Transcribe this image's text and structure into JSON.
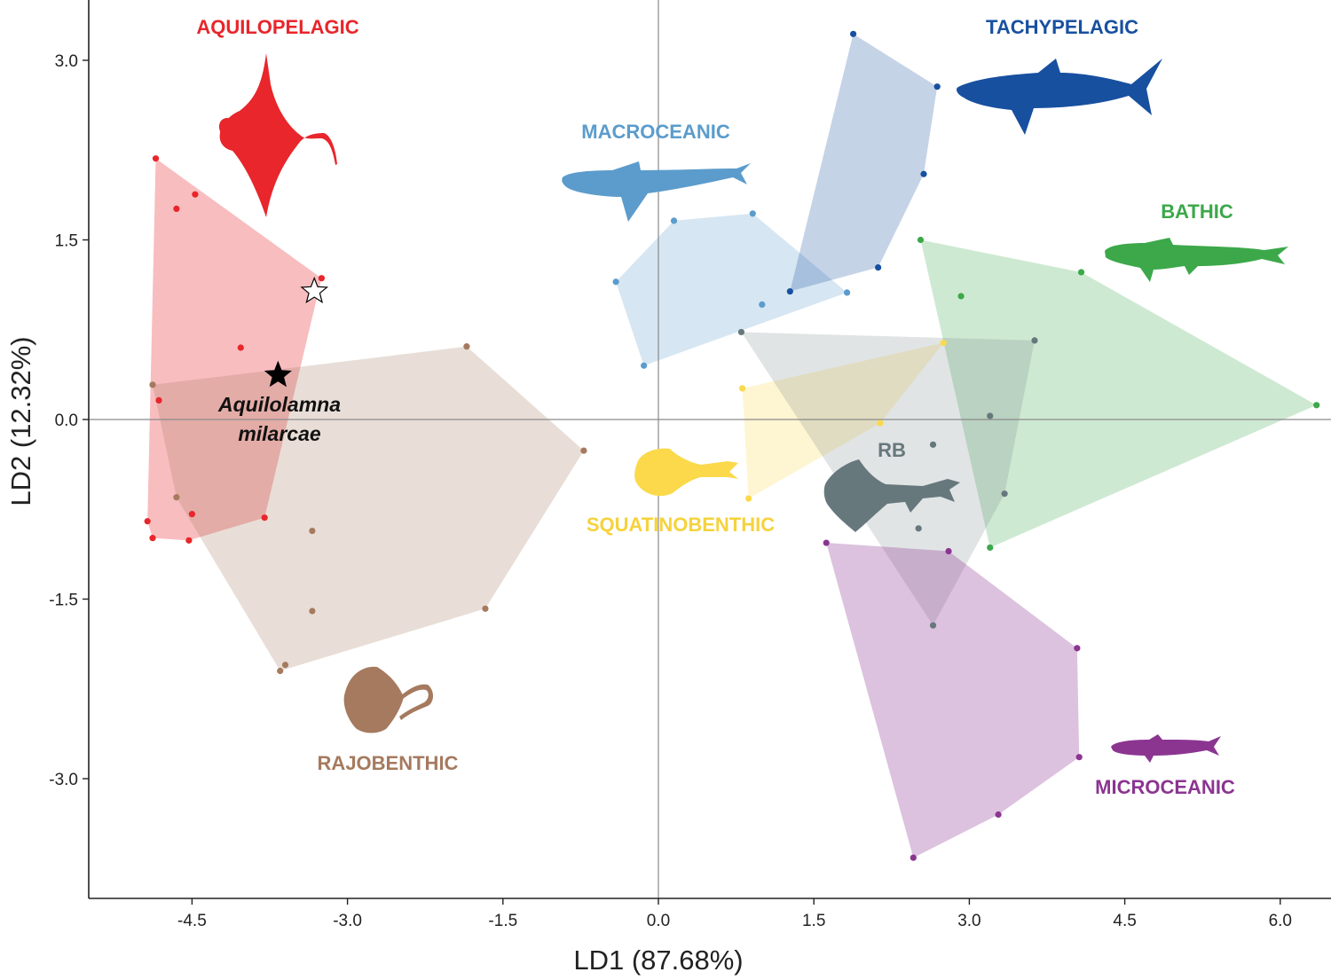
{
  "chart_data": {
    "type": "scatter",
    "xlabel": "LD1 (87.68%)",
    "ylabel": "LD2 (12.32%)",
    "xlim": [
      -5.5,
      6.5
    ],
    "ylim": [
      -4.0,
      3.5
    ],
    "xticks": [
      -4.5,
      -3.0,
      -1.5,
      0.0,
      1.5,
      3.0,
      4.5,
      6.0
    ],
    "xtick_labels": [
      "-4.5",
      "-3.0",
      "-1.5",
      "0.0",
      "1.5",
      "3.0",
      "4.5",
      "6.0"
    ],
    "yticks": [
      -3.0,
      -1.5,
      0.0,
      1.5,
      3.0
    ],
    "ytick_labels": [
      "-3.0",
      "-1.5",
      "0.0",
      "1.5",
      "3.0"
    ],
    "grid": false,
    "reference_lines": {
      "x": 0.0,
      "y": 0.0
    },
    "series": [
      {
        "name": "AQUILOPELAGIC",
        "color": "#e8262b",
        "hull_opacity": 0.3,
        "points": [
          [
            -4.85,
            2.18
          ],
          [
            -4.47,
            1.88
          ],
          [
            -4.65,
            1.76
          ],
          [
            -3.25,
            1.18
          ],
          [
            -4.03,
            0.6
          ],
          [
            -4.82,
            0.16
          ],
          [
            -4.5,
            -0.79
          ],
          [
            -3.8,
            -0.82
          ],
          [
            -4.93,
            -0.85
          ],
          [
            -4.88,
            -0.99
          ],
          [
            -4.53,
            -1.01
          ]
        ]
      },
      {
        "name": "RAJOBENTHIC",
        "color": "#a57a5f",
        "hull_opacity": 0.25,
        "points": [
          [
            -1.85,
            0.61
          ],
          [
            -0.72,
            -0.26
          ],
          [
            -4.88,
            0.29
          ],
          [
            -4.65,
            -0.65
          ],
          [
            -3.34,
            -0.93
          ],
          [
            -3.34,
            -1.6
          ],
          [
            -1.67,
            -1.58
          ],
          [
            -3.6,
            -2.05
          ],
          [
            -3.65,
            -2.1
          ]
        ]
      },
      {
        "name": "MACROCEANIC",
        "color": "#5b9ccc",
        "hull_opacity": 0.25,
        "points": [
          [
            0.15,
            1.66
          ],
          [
            0.91,
            1.72
          ],
          [
            -0.41,
            1.15
          ],
          [
            1.82,
            1.06
          ],
          [
            1.0,
            0.96
          ],
          [
            -0.14,
            0.45
          ]
        ]
      },
      {
        "name": "TACHYPELAGIC",
        "color": "#1850a0",
        "hull_opacity": 0.25,
        "points": [
          [
            1.88,
            3.22
          ],
          [
            2.69,
            2.78
          ],
          [
            2.56,
            2.05
          ],
          [
            2.12,
            1.27
          ],
          [
            1.27,
            1.07
          ]
        ]
      },
      {
        "name": "BATHIC",
        "color": "#3ca84a",
        "hull_opacity": 0.25,
        "points": [
          [
            2.53,
            1.5
          ],
          [
            4.08,
            1.23
          ],
          [
            2.92,
            1.03
          ],
          [
            6.35,
            0.12
          ],
          [
            3.2,
            -1.07
          ]
        ]
      },
      {
        "name": "SQUATINOBENTHIC",
        "color": "#fbd94a",
        "hull_opacity": 0.25,
        "points": [
          [
            2.75,
            0.64
          ],
          [
            0.81,
            0.26
          ],
          [
            2.14,
            -0.03
          ],
          [
            0.87,
            -0.66
          ]
        ]
      },
      {
        "name": "RB",
        "color": "#67787d",
        "hull_opacity": 0.2,
        "points": [
          [
            0.8,
            0.73
          ],
          [
            3.63,
            0.66
          ],
          [
            3.2,
            0.03
          ],
          [
            2.65,
            -0.21
          ],
          [
            3.34,
            -0.62
          ],
          [
            2.51,
            -0.91
          ],
          [
            2.65,
            -1.72
          ]
        ]
      },
      {
        "name": "MICROCEANIC",
        "color": "#8b3591",
        "hull_opacity": 0.3,
        "points": [
          [
            1.62,
            -1.03
          ],
          [
            2.8,
            -1.1
          ],
          [
            4.04,
            -1.91
          ],
          [
            4.06,
            -2.82
          ],
          [
            3.28,
            -3.3
          ],
          [
            2.46,
            -3.66
          ]
        ]
      }
    ],
    "annotations": [
      {
        "name": "Aquilolamna milarcae",
        "marker": "filled-star",
        "x": -3.67,
        "y": 0.37,
        "color": "#000000"
      },
      {
        "name": "",
        "marker": "open-star",
        "x": -3.32,
        "y": 1.07,
        "color": "#000000"
      }
    ]
  },
  "labels": {
    "aquilopelagic": "AQUILOPELAGIC",
    "tachypelagic": "TACHYPELAGIC",
    "macroceanic": "MACROCEANIC",
    "bathic": "BATHIC",
    "squatinobenthic": "SQUATINOBENTHIC",
    "rb": "RB",
    "rajobenthic": "RAJOBENTHIC",
    "microceanic": "MICROCEANIC",
    "species_line1": "Aquilolamna",
    "species_line2": "milarcae"
  },
  "icons": {
    "aquilopelagic": "manta-ray-silhouette-icon",
    "tachypelagic": "great-white-shark-silhouette-icon",
    "macroceanic": "whale-shark-silhouette-icon",
    "bathic": "sixgill-shark-silhouette-icon",
    "squatinobenthic": "angel-shark-silhouette-icon",
    "rb": "guitarfish-silhouette-icon",
    "rajobenthic": "stingray-silhouette-icon",
    "microceanic": "small-shark-silhouette-icon"
  }
}
